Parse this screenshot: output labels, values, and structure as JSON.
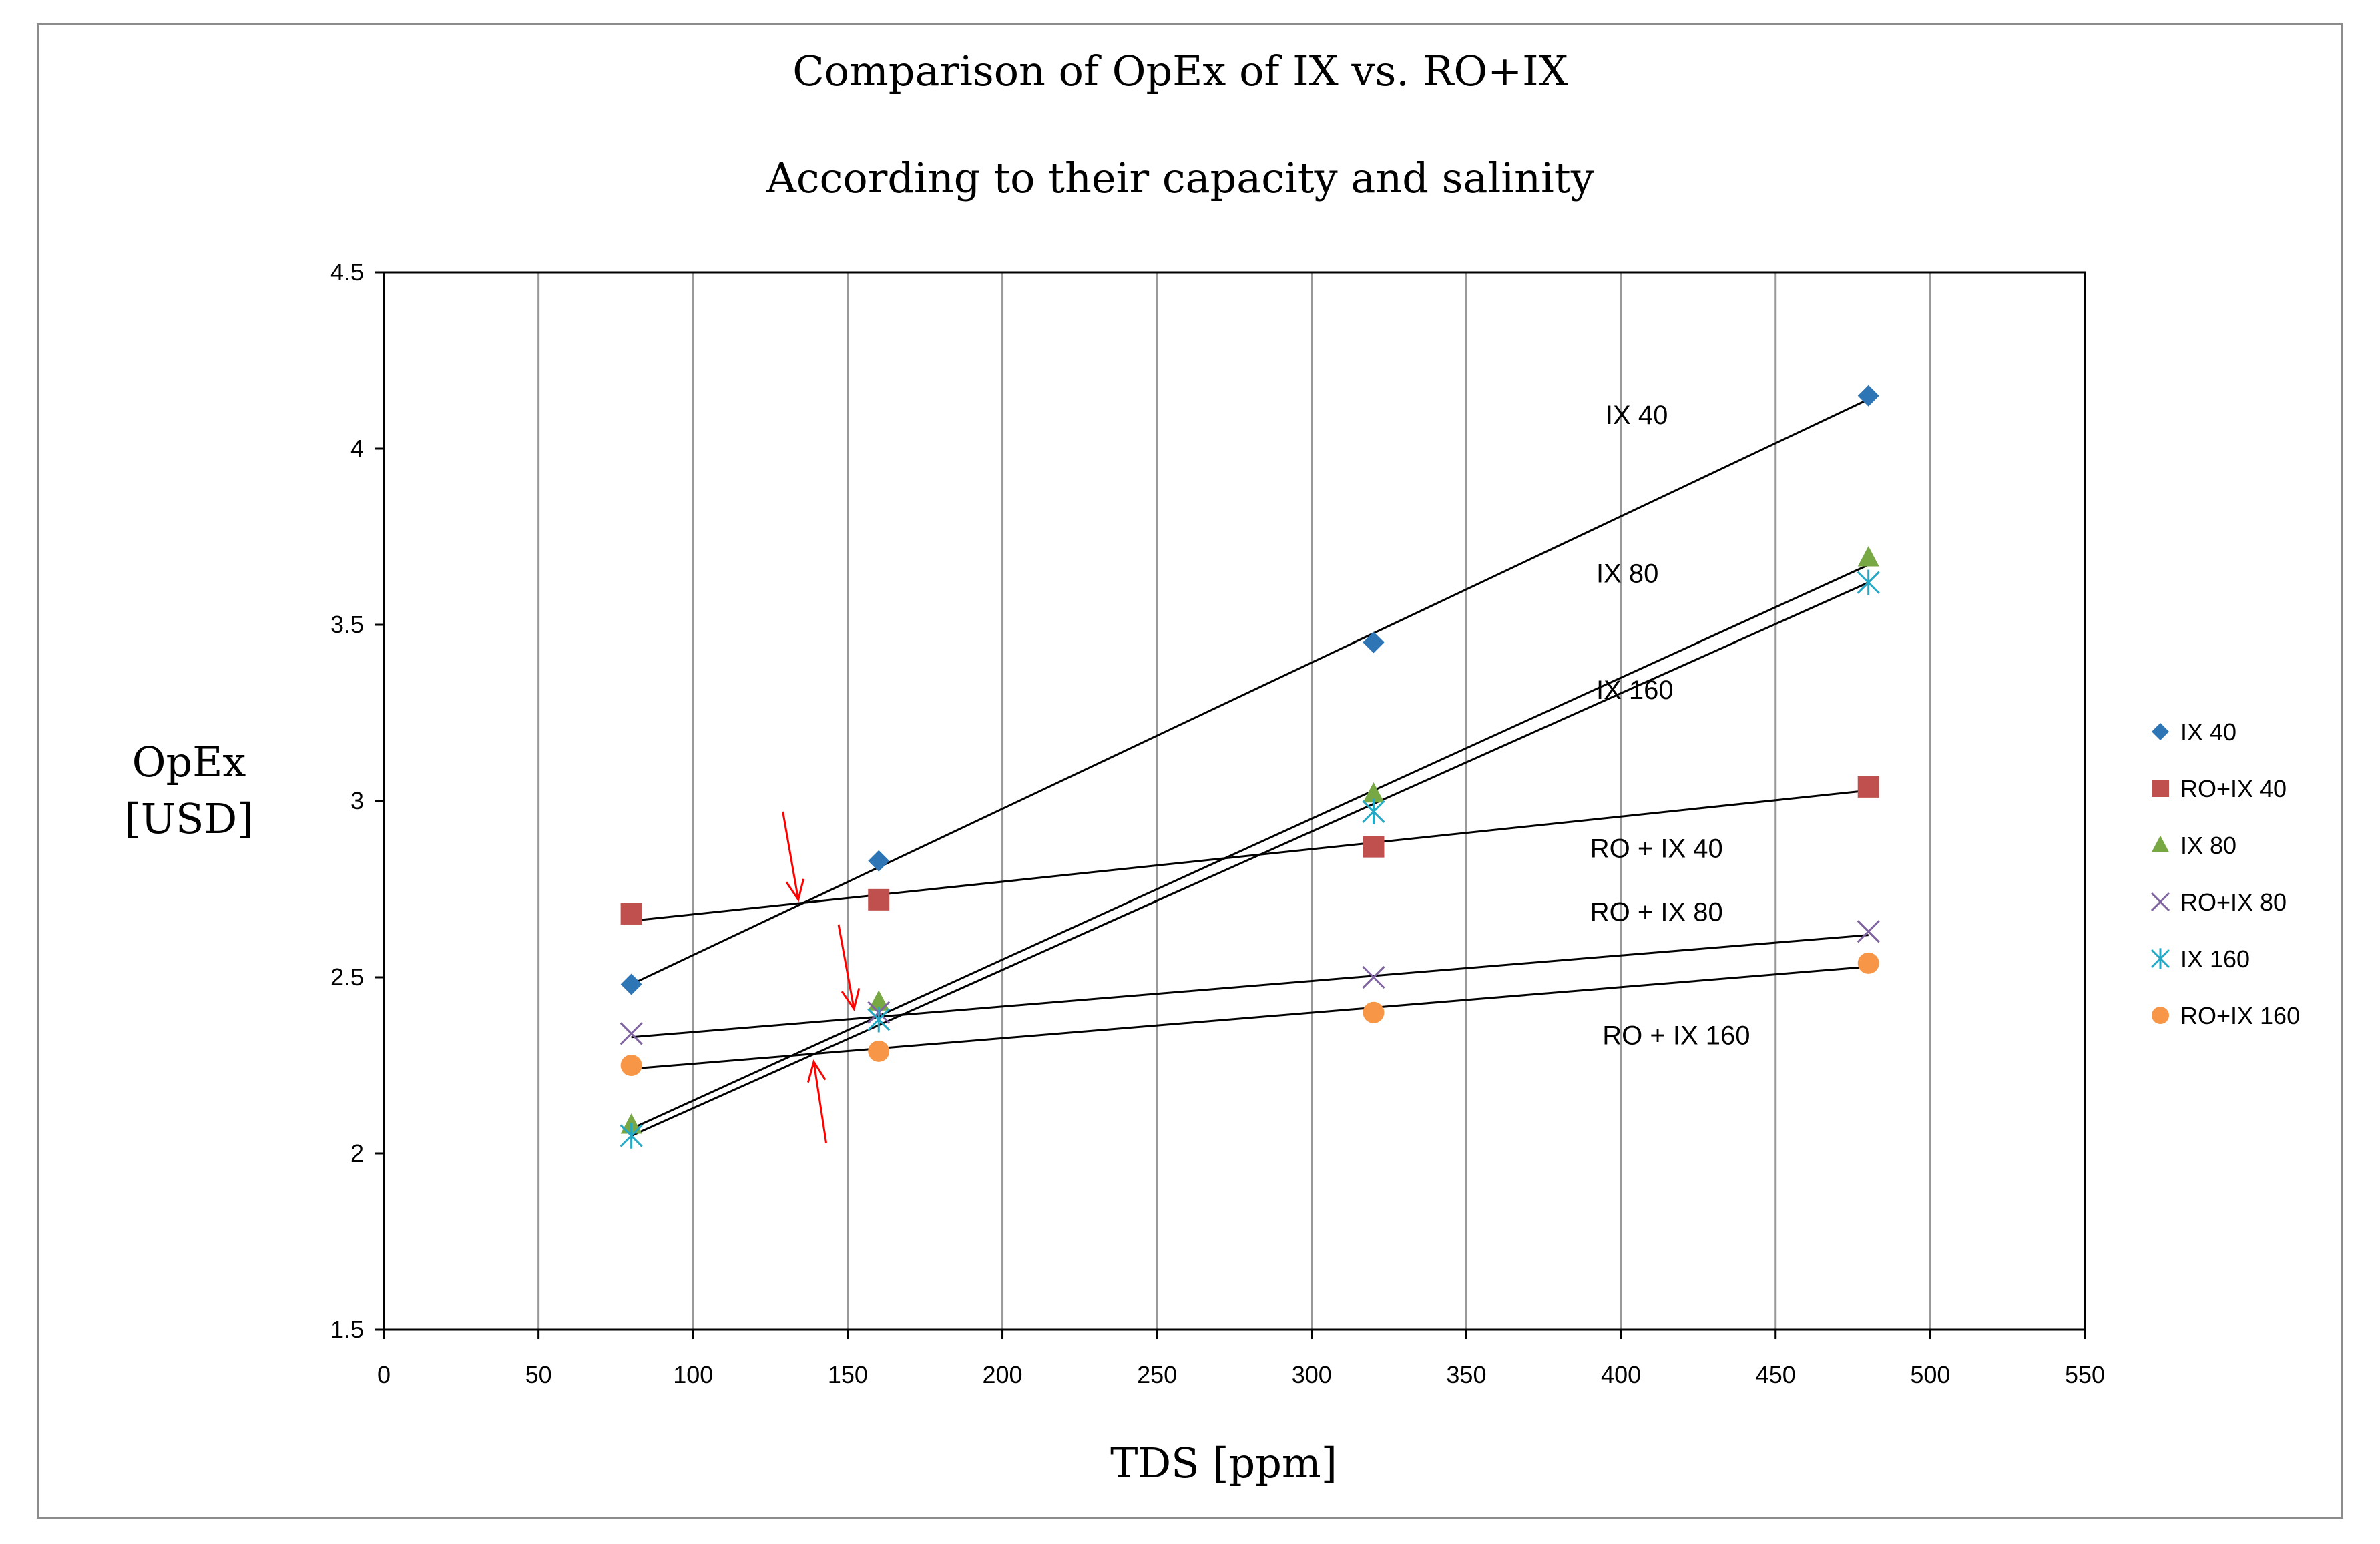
{
  "chart_data": {
    "type": "scatter",
    "title": "Comparison of OpEx of IX vs. RO+IX",
    "subtitle": "According to their capacity and salinity",
    "xlabel": "TDS [ppm]",
    "ylabel_lines": [
      "OpEx",
      "[USD]"
    ],
    "xlim": [
      0,
      550
    ],
    "ylim": [
      1.5,
      4.5
    ],
    "x_ticks": [
      0,
      50,
      100,
      150,
      200,
      250,
      300,
      350,
      400,
      450,
      500,
      550
    ],
    "y_ticks": [
      1.5,
      2,
      2.5,
      3,
      3.5,
      4,
      4.5
    ],
    "y_tick_labels": [
      "1.5",
      "2",
      "2.5",
      "3",
      "3.5",
      "4",
      "4.5"
    ],
    "grid": "vertical",
    "legend_position": "right",
    "series": [
      {
        "name": "IX 40",
        "marker": "diamond",
        "color": "#2e75b6",
        "points": [
          [
            80,
            2.48
          ],
          [
            160,
            2.83
          ],
          [
            320,
            3.45
          ],
          [
            480,
            4.15
          ]
        ],
        "trend": [
          [
            80,
            2.48
          ],
          [
            480,
            4.14
          ]
        ]
      },
      {
        "name": "RO+IX 40",
        "marker": "square",
        "color": "#c0504d",
        "points": [
          [
            80,
            2.68
          ],
          [
            160,
            2.72
          ],
          [
            320,
            2.87
          ],
          [
            480,
            3.04
          ]
        ],
        "trend": [
          [
            80,
            2.66
          ],
          [
            480,
            3.03
          ]
        ]
      },
      {
        "name": "IX 80",
        "marker": "triangle",
        "color": "#77a844",
        "points": [
          [
            80,
            2.08
          ],
          [
            160,
            2.43
          ],
          [
            320,
            3.02
          ],
          [
            480,
            3.69
          ]
        ],
        "trend": [
          [
            80,
            2.07
          ],
          [
            480,
            3.67
          ]
        ]
      },
      {
        "name": "RO+IX 80",
        "marker": "x",
        "color": "#8064a2",
        "points": [
          [
            80,
            2.34
          ],
          [
            160,
            2.4
          ],
          [
            320,
            2.5
          ],
          [
            480,
            2.63
          ]
        ],
        "trend": [
          [
            80,
            2.33
          ],
          [
            480,
            2.62
          ]
        ]
      },
      {
        "name": "IX 160",
        "marker": "star",
        "color": "#23a9c6",
        "points": [
          [
            80,
            2.05
          ],
          [
            160,
            2.38
          ],
          [
            320,
            2.97
          ],
          [
            480,
            3.62
          ]
        ],
        "trend": [
          [
            80,
            2.05
          ],
          [
            480,
            3.62
          ]
        ]
      },
      {
        "name": "RO+IX 160",
        "marker": "circle",
        "color": "#f79646",
        "points": [
          [
            80,
            2.25
          ],
          [
            160,
            2.29
          ],
          [
            320,
            2.4
          ],
          [
            480,
            2.54
          ]
        ],
        "trend": [
          [
            80,
            2.24
          ],
          [
            480,
            2.53
          ]
        ]
      }
    ],
    "annotations": [
      {
        "text": "IX 40",
        "x": 395,
        "y": 4.07
      },
      {
        "text": "IX 80",
        "x": 392,
        "y": 3.62
      },
      {
        "text": "IX 160",
        "x": 392,
        "y": 3.29
      },
      {
        "text": "RO + IX 40",
        "x": 390,
        "y": 2.84
      },
      {
        "text": "RO + IX 80",
        "x": 390,
        "y": 2.66
      },
      {
        "text": "RO + IX 160",
        "x": 394,
        "y": 2.31
      }
    ],
    "arrows": [
      {
        "from": [
          129,
          2.97
        ],
        "to": [
          134,
          2.72
        ],
        "color": "#ff0000"
      },
      {
        "from": [
          147,
          2.65
        ],
        "to": [
          152,
          2.41
        ],
        "color": "#ff0000"
      },
      {
        "from": [
          143,
          2.03
        ],
        "to": [
          139,
          2.26
        ],
        "color": "#ff0000"
      }
    ]
  }
}
